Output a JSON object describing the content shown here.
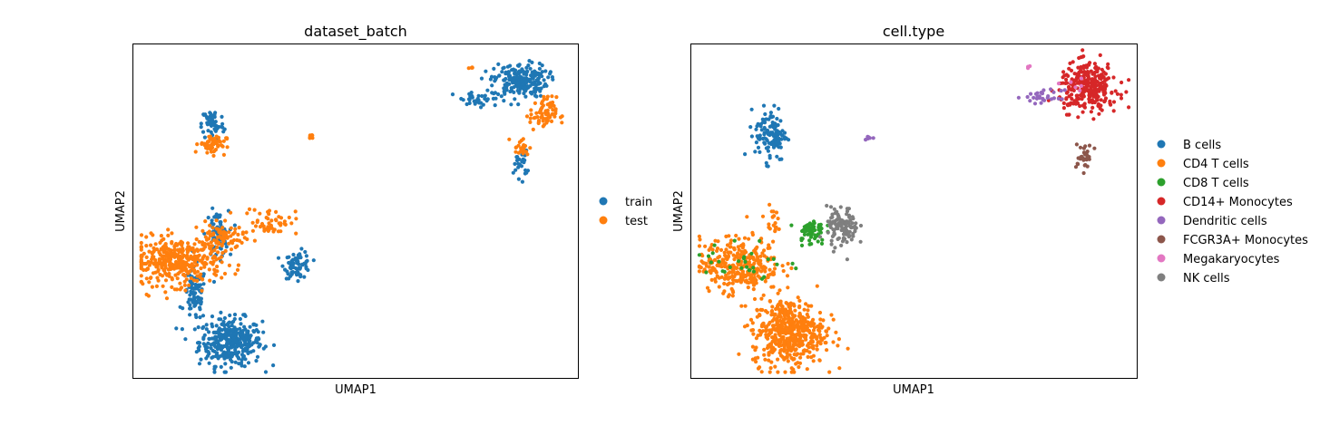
{
  "chart_data": [
    {
      "type": "scatter",
      "title": "dataset_batch",
      "xlabel": "UMAP1",
      "ylabel": "UMAP2",
      "grid": false,
      "ticks": false,
      "legend_position": "right",
      "series": [
        {
          "name": "train",
          "color": "#1f77b4"
        },
        {
          "name": "test",
          "color": "#ff7f0e"
        }
      ],
      "clusters": [
        {
          "series": "train",
          "cx": 0.22,
          "cy": 0.11,
          "rx": 0.07,
          "ry": 0.07,
          "n": 360
        },
        {
          "series": "train",
          "cx": 0.14,
          "cy": 0.25,
          "rx": 0.025,
          "ry": 0.08,
          "n": 90
        },
        {
          "series": "train",
          "cx": 0.37,
          "cy": 0.34,
          "rx": 0.03,
          "ry": 0.04,
          "n": 70
        },
        {
          "series": "train",
          "cx": 0.19,
          "cy": 0.43,
          "rx": 0.025,
          "ry": 0.07,
          "n": 70
        },
        {
          "series": "train",
          "cx": 0.18,
          "cy": 0.76,
          "rx": 0.025,
          "ry": 0.05,
          "n": 60
        },
        {
          "series": "train",
          "cx": 0.87,
          "cy": 0.89,
          "rx": 0.06,
          "ry": 0.05,
          "n": 220
        },
        {
          "series": "train",
          "cx": 0.78,
          "cy": 0.83,
          "rx": 0.06,
          "ry": 0.025,
          "n": 40
        },
        {
          "series": "train",
          "cx": 0.87,
          "cy": 0.64,
          "rx": 0.015,
          "ry": 0.04,
          "n": 25
        },
        {
          "series": "test",
          "cx": 0.1,
          "cy": 0.35,
          "rx": 0.1,
          "ry": 0.07,
          "n": 380
        },
        {
          "series": "test",
          "cx": 0.2,
          "cy": 0.42,
          "rx": 0.05,
          "ry": 0.04,
          "n": 80
        },
        {
          "series": "test",
          "cx": 0.31,
          "cy": 0.47,
          "rx": 0.06,
          "ry": 0.04,
          "n": 50
        },
        {
          "series": "test",
          "cx": 0.18,
          "cy": 0.7,
          "rx": 0.03,
          "ry": 0.03,
          "n": 55
        },
        {
          "series": "test",
          "cx": 0.92,
          "cy": 0.79,
          "rx": 0.03,
          "ry": 0.05,
          "n": 70
        },
        {
          "series": "test",
          "cx": 0.87,
          "cy": 0.69,
          "rx": 0.02,
          "ry": 0.03,
          "n": 20
        },
        {
          "series": "test",
          "cx": 0.4,
          "cy": 0.72,
          "rx": 0.008,
          "ry": 0.008,
          "n": 8
        },
        {
          "series": "test",
          "cx": 0.76,
          "cy": 0.93,
          "rx": 0.008,
          "ry": 0.005,
          "n": 4
        }
      ]
    },
    {
      "type": "scatter",
      "title": "cell.type",
      "xlabel": "UMAP1",
      "ylabel": "UMAP2",
      "grid": false,
      "ticks": false,
      "legend_position": "right",
      "series": [
        {
          "name": "B cells",
          "color": "#1f77b4"
        },
        {
          "name": "CD4 T cells",
          "color": "#ff7f0e"
        },
        {
          "name": "CD8 T cells",
          "color": "#2ca02c"
        },
        {
          "name": "CD14+ Monocytes",
          "color": "#d62728"
        },
        {
          "name": "Dendritic cells",
          "color": "#9467bd"
        },
        {
          "name": "FCGR3A+ Monocytes",
          "color": "#8c564b"
        },
        {
          "name": "Megakaryocytes",
          "color": "#e377c2"
        },
        {
          "name": "NK cells",
          "color": "#7f7f7f"
        }
      ],
      "clusters": [
        {
          "series": "B cells",
          "cx": 0.18,
          "cy": 0.73,
          "rx": 0.035,
          "ry": 0.08,
          "n": 120
        },
        {
          "series": "CD4 T cells",
          "cx": 0.22,
          "cy": 0.14,
          "rx": 0.08,
          "ry": 0.1,
          "n": 500
        },
        {
          "series": "CD4 T cells",
          "cx": 0.11,
          "cy": 0.34,
          "rx": 0.09,
          "ry": 0.08,
          "n": 320
        },
        {
          "series": "CD4 T cells",
          "cx": 0.18,
          "cy": 0.47,
          "rx": 0.015,
          "ry": 0.04,
          "n": 20
        },
        {
          "series": "CD8 T cells",
          "cx": 0.27,
          "cy": 0.44,
          "rx": 0.03,
          "ry": 0.04,
          "n": 60
        },
        {
          "series": "CD8 T cells",
          "cx": 0.12,
          "cy": 0.35,
          "rx": 0.09,
          "ry": 0.07,
          "n": 30
        },
        {
          "series": "NK cells",
          "cx": 0.34,
          "cy": 0.45,
          "rx": 0.035,
          "ry": 0.06,
          "n": 110
        },
        {
          "series": "CD14+ Monocytes",
          "cx": 0.89,
          "cy": 0.87,
          "rx": 0.065,
          "ry": 0.07,
          "n": 300
        },
        {
          "series": "Dendritic cells",
          "cx": 0.79,
          "cy": 0.84,
          "rx": 0.04,
          "ry": 0.02,
          "n": 30
        },
        {
          "series": "Dendritic cells",
          "cx": 0.4,
          "cy": 0.72,
          "rx": 0.008,
          "ry": 0.008,
          "n": 8
        },
        {
          "series": "FCGR3A+ Monocytes",
          "cx": 0.88,
          "cy": 0.66,
          "rx": 0.02,
          "ry": 0.04,
          "n": 30
        },
        {
          "series": "Megakaryocytes",
          "cx": 0.76,
          "cy": 0.93,
          "rx": 0.008,
          "ry": 0.005,
          "n": 4
        },
        {
          "series": "Megakaryocytes",
          "cx": 0.86,
          "cy": 0.87,
          "rx": 0.03,
          "ry": 0.03,
          "n": 6
        }
      ]
    }
  ]
}
